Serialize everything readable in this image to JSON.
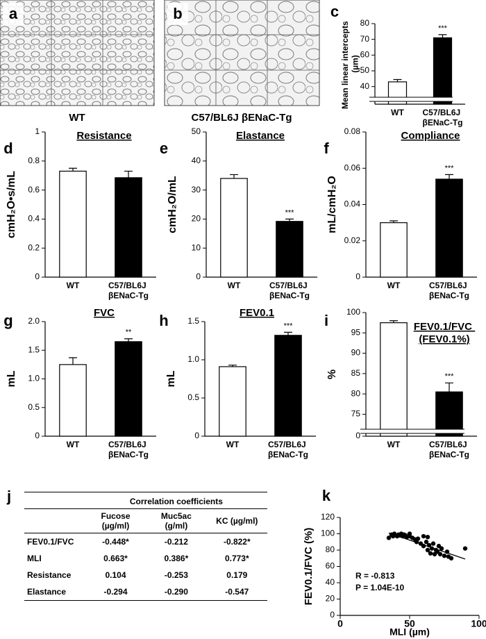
{
  "panels": [
    {
      "label": "a",
      "caption": "WT"
    },
    {
      "label": "b",
      "caption": "C57/BL6J βENaC-Tg"
    }
  ],
  "chart_data": [
    {
      "type": "bar",
      "panel": "c",
      "ylabel": "Mean linear intercepts (µm)",
      "categories": [
        "WT",
        "C57/BL6J βENaC-Tg"
      ],
      "values": [
        43,
        71
      ],
      "errors": [
        1.5,
        2
      ],
      "significance": [
        null,
        "***"
      ],
      "colors": [
        "#ffffff",
        "#000000"
      ],
      "ylim": [
        0,
        80
      ],
      "ybreak": [
        0,
        35
      ],
      "yticks": [
        40,
        50,
        60,
        70,
        80
      ]
    },
    {
      "type": "bar",
      "panel": "d",
      "title": "Resistance",
      "ylabel": "cmH₂O•s/mL",
      "categories": [
        "WT",
        "C57/BL6J βENaC-Tg"
      ],
      "values": [
        0.73,
        0.685
      ],
      "errors": [
        0.02,
        0.045
      ],
      "significance": [
        null,
        null
      ],
      "colors": [
        "#ffffff",
        "#000000"
      ],
      "ylim": [
        0,
        1
      ],
      "yticks": [
        0,
        0.2,
        0.4,
        0.6,
        0.8,
        1
      ]
    },
    {
      "type": "bar",
      "panel": "e",
      "title": "Elastance",
      "ylabel": "cmH₂O/mL",
      "categories": [
        "WT",
        "C57/BL6J βENaC-Tg"
      ],
      "values": [
        34,
        19.2
      ],
      "errors": [
        1.3,
        0.8
      ],
      "significance": [
        null,
        "***"
      ],
      "colors": [
        "#ffffff",
        "#000000"
      ],
      "ylim": [
        0,
        50
      ],
      "yticks": [
        0,
        10,
        20,
        30,
        40,
        50
      ]
    },
    {
      "type": "bar",
      "panel": "f",
      "title": "Compliance",
      "ylabel": "mL/cmH₂O",
      "categories": [
        "WT",
        "C57/BL6J βENaC-Tg"
      ],
      "values": [
        0.03,
        0.054
      ],
      "errors": [
        0.001,
        0.0025
      ],
      "significance": [
        null,
        "***"
      ],
      "colors": [
        "#ffffff",
        "#000000"
      ],
      "ylim": [
        0,
        0.08
      ],
      "yticks": [
        0,
        0.02,
        0.04,
        0.06,
        0.08
      ]
    },
    {
      "type": "bar",
      "panel": "g",
      "title": "FVC",
      "ylabel": "mL",
      "categories": [
        "WT",
        "C57/BL6J βENaC-Tg"
      ],
      "values": [
        1.25,
        1.65
      ],
      "errors": [
        0.12,
        0.05
      ],
      "significance": [
        null,
        "**"
      ],
      "colors": [
        "#ffffff",
        "#000000"
      ],
      "ylim": [
        0,
        2
      ],
      "yticks": [
        0,
        0.5,
        {
          "value": 1,
          "label": "1.0"
        },
        1.5,
        {
          "value": 2,
          "label": "2.0"
        }
      ]
    },
    {
      "type": "bar",
      "panel": "h",
      "title": "FEV0.1",
      "ylabel": "mL",
      "categories": [
        "WT",
        "C57/BL6J βENaC-Tg"
      ],
      "values": [
        0.91,
        1.32
      ],
      "errors": [
        0.02,
        0.04
      ],
      "significance": [
        null,
        "***"
      ],
      "colors": [
        "#ffffff",
        "#000000"
      ],
      "ylim": [
        0,
        1.5
      ],
      "yticks": [
        0,
        0.5,
        {
          "value": 1,
          "label": "1.0"
        },
        1.5
      ]
    },
    {
      "type": "bar",
      "panel": "i",
      "title": "FEV0.1/FVC (FEV0.1%)",
      "ylabel": "%",
      "categories": [
        "WT",
        "C57/BL6J βENaC-Tg"
      ],
      "values": [
        97.5,
        80.5
      ],
      "errors": [
        0.5,
        2.2
      ],
      "significance": [
        null,
        "***"
      ],
      "colors": [
        "#ffffff",
        "#000000"
      ],
      "ylim": [
        0,
        100
      ],
      "ybreak": [
        0,
        72
      ],
      "yticks": [
        0,
        75,
        80,
        85,
        90,
        95,
        100
      ]
    },
    {
      "type": "scatter",
      "panel": "k",
      "xlabel": "MLI (µm)",
      "ylabel": "FEV0.1/FVC (%)",
      "color": "#000000",
      "x": [
        35,
        37,
        38,
        39,
        40,
        41,
        42,
        43,
        44,
        45,
        46,
        47,
        48,
        50,
        50,
        52,
        54,
        55,
        56,
        58,
        60,
        60,
        62,
        63,
        64,
        65,
        66,
        67,
        68,
        69,
        70,
        71,
        72,
        73,
        75,
        77,
        78,
        80,
        90,
        63
      ],
      "values": [
        95,
        99,
        97,
        100,
        98,
        97,
        99,
        98,
        100,
        97,
        99,
        98,
        96,
        97,
        100,
        95,
        93,
        90,
        94,
        88,
        85,
        97,
        90,
        80,
        86,
        76,
        82,
        88,
        75,
        80,
        78,
        85,
        75,
        82,
        73,
        78,
        72,
        70,
        82,
        96
      ],
      "fit_x": [
        35,
        90
      ],
      "fit_y": [
        101,
        69
      ],
      "annotations": [
        "R = -0.813",
        "P = 1.04E-10"
      ],
      "xlim": [
        0,
        100
      ],
      "xticks": [
        0,
        50,
        100
      ],
      "ylim": [
        0,
        120
      ],
      "yticks": [
        0,
        20,
        40,
        60,
        80,
        100,
        120
      ]
    }
  ],
  "table": {
    "panel": "j",
    "title": "Correlation coefficients",
    "columns": [
      "Fucose (µg/ml)",
      "Muc5ac (g/ml)",
      "KC (µg/ml)"
    ],
    "rows": [
      [
        "FEV0.1/FVC",
        "-0.448*",
        "-0.212",
        "-0.822*"
      ],
      [
        "MLI",
        "0.663*",
        "0.386*",
        "0.773*"
      ],
      [
        "Resistance",
        "0.104",
        "-0.253",
        "0.179"
      ],
      [
        "Elastance",
        "-0.294",
        "-0.290",
        "-0.547"
      ]
    ]
  }
}
